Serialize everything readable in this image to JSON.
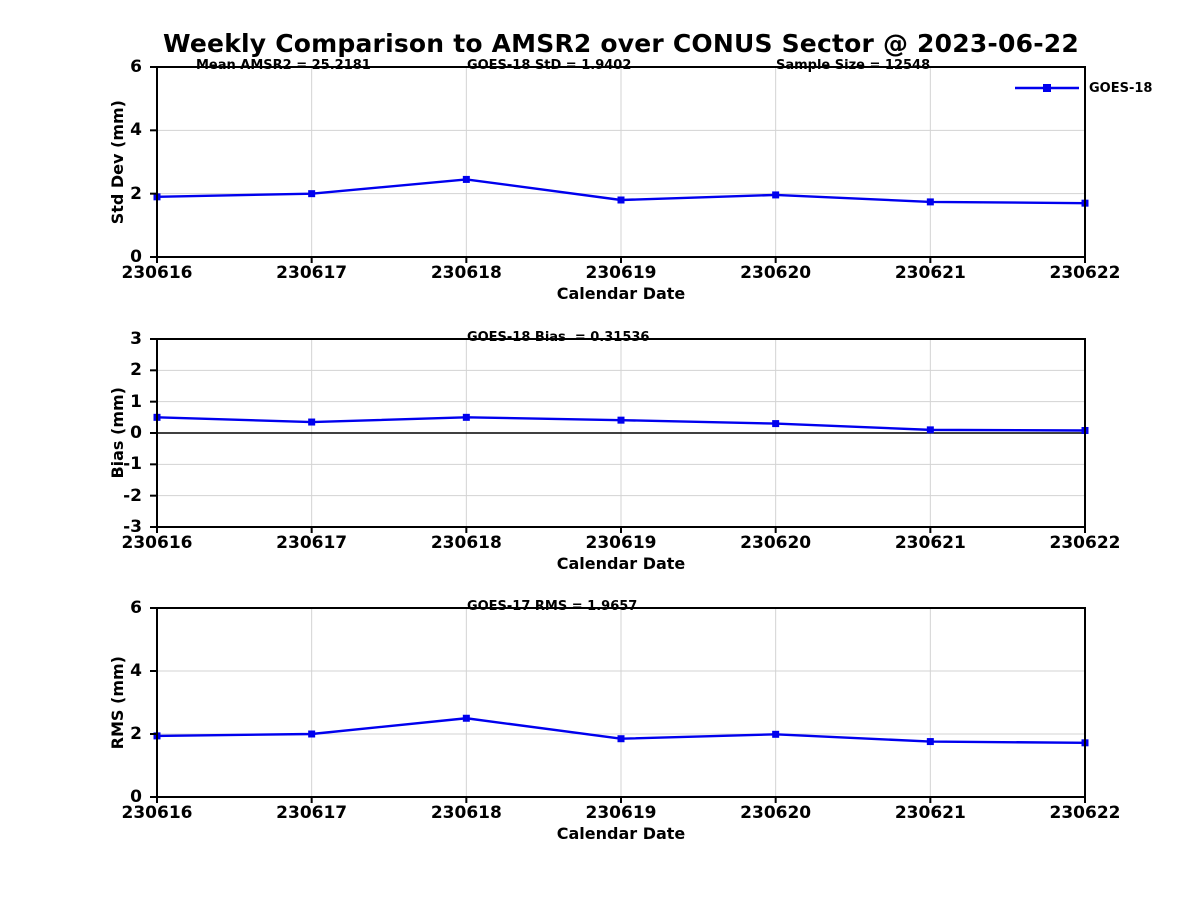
{
  "figure": {
    "title": "Weekly Comparison to AMSR2 over CONUS Sector @ 2023-06-22",
    "legend": {
      "label": "GOES-18",
      "color": "#0000EE",
      "position": "upper right"
    }
  },
  "colors": {
    "series_blue": "#0000EE",
    "grid_gray": "#d3d3d3",
    "axis_black": "#000000"
  },
  "chart_data": [
    {
      "type": "line",
      "id": "stddev",
      "ylabel": "Std Dev (mm)",
      "xlabel": "Calendar Date",
      "categories": [
        "230616",
        "230617",
        "230618",
        "230619",
        "230620",
        "230621",
        "230622"
      ],
      "ylim": [
        0,
        6
      ],
      "yticks": [
        0,
        2,
        4,
        6
      ],
      "grid": true,
      "zero_line": false,
      "annotations": [
        {
          "text": "Mean AMSR2 = 25.2181",
          "xfrac": 0.042
        },
        {
          "text": "GOES-18 StD = 1.9402",
          "xfrac": 0.334
        },
        {
          "text": "Sample Size = 12548",
          "xfrac": 0.667
        }
      ],
      "series": [
        {
          "name": "GOES-18",
          "color": "#0000EE",
          "marker": "square",
          "values": [
            1.9,
            2.0,
            2.45,
            1.8,
            1.96,
            1.74,
            1.7
          ]
        }
      ]
    },
    {
      "type": "line",
      "id": "bias",
      "ylabel": "Bias (mm)",
      "xlabel": "Calendar Date",
      "categories": [
        "230616",
        "230617",
        "230618",
        "230619",
        "230620",
        "230621",
        "230622"
      ],
      "ylim": [
        -3,
        3
      ],
      "yticks": [
        -3,
        -2,
        -1,
        0,
        1,
        2,
        3
      ],
      "grid": true,
      "zero_line": true,
      "annotations": [
        {
          "text": "GOES-18 Bias  = 0.31536",
          "xfrac": 0.334
        }
      ],
      "series": [
        {
          "name": "GOES-18",
          "color": "#0000EE",
          "marker": "square",
          "values": [
            0.5,
            0.35,
            0.5,
            0.41,
            0.3,
            0.1,
            0.08
          ]
        }
      ]
    },
    {
      "type": "line",
      "id": "rms",
      "ylabel": "RMS (mm)",
      "xlabel": "Calendar Date",
      "categories": [
        "230616",
        "230617",
        "230618",
        "230619",
        "230620",
        "230621",
        "230622"
      ],
      "ylim": [
        0,
        6
      ],
      "yticks": [
        0,
        2,
        4,
        6
      ],
      "grid": true,
      "zero_line": false,
      "annotations": [
        {
          "text": "GOES-17 RMS = 1.9657",
          "xfrac": 0.334
        }
      ],
      "series": [
        {
          "name": "GOES-18",
          "color": "#0000EE",
          "marker": "square",
          "values": [
            1.94,
            2.0,
            2.5,
            1.85,
            1.99,
            1.76,
            1.72
          ]
        }
      ]
    }
  ]
}
